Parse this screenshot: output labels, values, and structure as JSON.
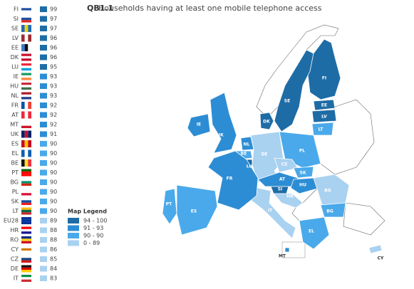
{
  "header": {
    "code": "QB1.1",
    "title": "Households having at least one mobile telephone access"
  },
  "rows": [
    {
      "code": "FI",
      "value": 99
    },
    {
      "code": "SI",
      "value": 97
    },
    {
      "code": "SE",
      "value": 97
    },
    {
      "code": "LV",
      "value": 96
    },
    {
      "code": "EE",
      "value": 96
    },
    {
      "code": "DK",
      "value": 96
    },
    {
      "code": "LU",
      "value": 95
    },
    {
      "code": "IE",
      "value": 93
    },
    {
      "code": "HU",
      "value": 93
    },
    {
      "code": "NL",
      "value": 93
    },
    {
      "code": "FR",
      "value": 92
    },
    {
      "code": "AT",
      "value": 92
    },
    {
      "code": "MT",
      "value": 92
    },
    {
      "code": "UK",
      "value": 91
    },
    {
      "code": "ES",
      "value": 90
    },
    {
      "code": "EL",
      "value": 90
    },
    {
      "code": "BE",
      "value": 90
    },
    {
      "code": "PT",
      "value": 90
    },
    {
      "code": "BG",
      "value": 90
    },
    {
      "code": "PL",
      "value": 90
    },
    {
      "code": "SK",
      "value": 90
    },
    {
      "code": "LT",
      "value": 90
    },
    {
      "code": "EU28",
      "value": 89
    },
    {
      "code": "HR",
      "value": 88
    },
    {
      "code": "RO",
      "value": 88
    },
    {
      "code": "CY",
      "value": 86
    },
    {
      "code": "CZ",
      "value": 85
    },
    {
      "code": "DE",
      "value": 84
    },
    {
      "code": "IT",
      "value": 83
    }
  ],
  "legend": {
    "title": "Map Legend",
    "items": [
      {
        "value": [
          94,
          100
        ],
        "label": "94 - 100",
        "color": "#1e6ca6"
      },
      {
        "value": [
          91,
          93
        ],
        "label": "91 - 93",
        "color": "#2d8dd4"
      },
      {
        "value": [
          90,
          90
        ],
        "label": "90 - 90",
        "color": "#4aa9ea"
      },
      {
        "value": [
          0,
          89
        ],
        "label": "0 - 89",
        "color": "#a9d1f0"
      }
    ]
  }
}
